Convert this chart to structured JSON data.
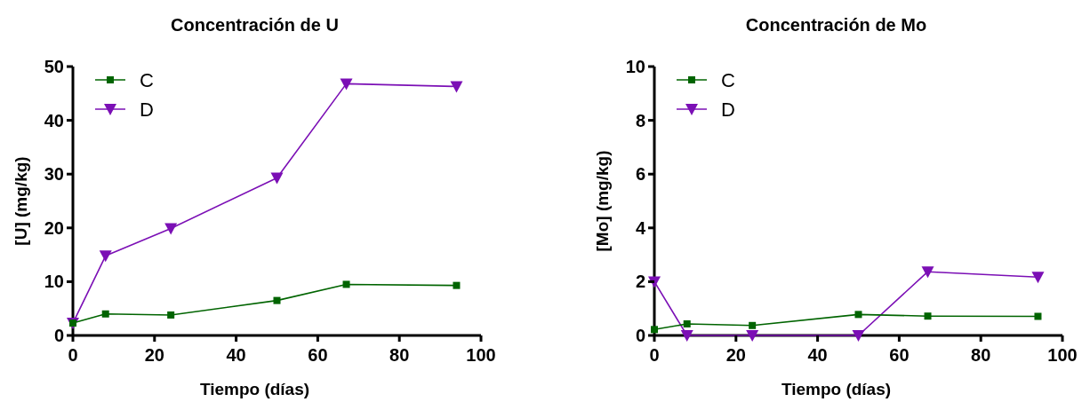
{
  "chart_data": [
    {
      "type": "line",
      "title": "Concentración de U",
      "xlabel": "Tiempo (días)",
      "ylabel": "[U] (mg/kg)",
      "x": [
        0,
        8,
        24,
        50,
        67,
        94
      ],
      "xlim": [
        0,
        100
      ],
      "xticks": [
        0,
        20,
        40,
        60,
        80,
        100
      ],
      "ylim": [
        0,
        50
      ],
      "yticks": [
        0,
        10,
        20,
        30,
        40,
        50
      ],
      "grid": false,
      "legend": "top left",
      "series": [
        {
          "name": "C",
          "color": "#006400",
          "marker": "square",
          "values": [
            2.3,
            4.0,
            3.8,
            6.5,
            9.5,
            9.3
          ]
        },
        {
          "name": "D",
          "color": "#7b0fb5",
          "marker": "triangle",
          "values": [
            2.3,
            14.8,
            19.9,
            29.3,
            46.8,
            46.3
          ]
        }
      ]
    },
    {
      "type": "line",
      "title": "Concentración de Mo",
      "xlabel": "Tiempo (días)",
      "ylabel": "[Mo] (mg/kg)",
      "x": [
        0,
        8,
        24,
        50,
        67,
        94
      ],
      "xlim": [
        0,
        100
      ],
      "xticks": [
        0,
        20,
        40,
        60,
        80,
        100
      ],
      "ylim": [
        0,
        10
      ],
      "yticks": [
        0,
        2,
        4,
        6,
        8,
        10
      ],
      "grid": false,
      "legend": "top left",
      "series": [
        {
          "name": "C",
          "color": "#006400",
          "marker": "square",
          "values": [
            0.22,
            0.43,
            0.37,
            0.78,
            0.72,
            0.71
          ]
        },
        {
          "name": "D",
          "color": "#7b0fb5",
          "marker": "triangle",
          "values": [
            2.0,
            0,
            0,
            0,
            2.37,
            2.17
          ]
        }
      ]
    }
  ]
}
